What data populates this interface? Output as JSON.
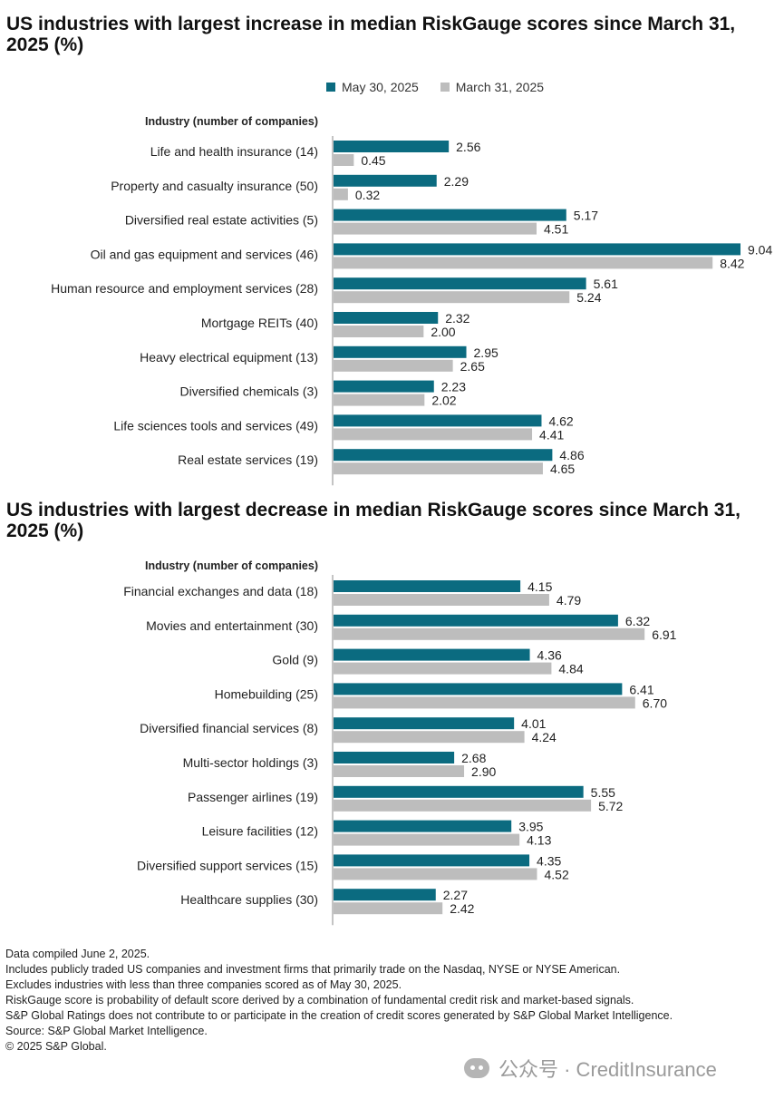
{
  "colors": {
    "may": "#0b6b80",
    "march": "#bdbdbd",
    "axis": "#8a8a8a"
  },
  "legend": {
    "may_label": "May 30, 2025",
    "march_label": "March 31, 2025"
  },
  "chart_data": [
    {
      "type": "bar",
      "orientation": "horizontal",
      "title": "US industries with largest increase in median RiskGauge scores since March 31, 2025 (%)",
      "category_header": "Industry (number of companies)",
      "categories": [
        "Life and health insurance (14)",
        "Property and casualty insurance (50)",
        "Diversified real estate activities (5)",
        "Oil and gas equipment and services (46)",
        "Human resource and employment services (28)",
        "Mortgage REITs (40)",
        "Heavy electrical equipment (13)",
        "Diversified chemicals (3)",
        "Life sciences tools and services (49)",
        "Real estate services (19)"
      ],
      "series": [
        {
          "name": "May 30, 2025",
          "values": [
            2.56,
            2.29,
            5.17,
            9.04,
            5.61,
            2.32,
            2.95,
            2.23,
            4.62,
            4.86
          ],
          "labels": [
            "2.56",
            "2.29",
            "5.17",
            "9.04",
            "5.61",
            "2.32",
            "2.95",
            "2.23",
            "4.62",
            "4.86"
          ]
        },
        {
          "name": "March 31, 2025",
          "values": [
            0.45,
            0.32,
            4.51,
            8.42,
            5.24,
            2.0,
            2.65,
            2.02,
            4.41,
            4.65
          ],
          "labels": [
            "0.45",
            "0.32",
            "4.51",
            "8.42",
            "5.24",
            "2.00",
            "2.65",
            "2.02",
            "4.41",
            "4.65"
          ]
        }
      ],
      "xlim": [
        0,
        9.04
      ]
    },
    {
      "type": "bar",
      "orientation": "horizontal",
      "title": "US industries with largest decrease in median RiskGauge scores since March 31, 2025 (%)",
      "category_header": "Industry (number of companies)",
      "categories": [
        "Financial exchanges and data (18)",
        "Movies and entertainment (30)",
        "Gold (9)",
        "Homebuilding (25)",
        "Diversified financial services (8)",
        "Multi-sector holdings (3)",
        "Passenger airlines (19)",
        "Leisure facilities (12)",
        "Diversified support services (15)",
        "Healthcare supplies (30)"
      ],
      "series": [
        {
          "name": "May 30, 2025",
          "values": [
            4.15,
            6.32,
            4.36,
            6.41,
            4.01,
            2.68,
            5.55,
            3.95,
            4.35,
            2.27
          ],
          "labels": [
            "4.15",
            "6.32",
            "4.36",
            "6.41",
            "4.01",
            "2.68",
            "5.55",
            "3.95",
            "4.35",
            "2.27"
          ]
        },
        {
          "name": "March 31, 2025",
          "values": [
            4.79,
            6.91,
            4.84,
            6.7,
            4.24,
            2.9,
            5.72,
            4.13,
            4.52,
            2.42
          ],
          "labels": [
            "4.79",
            "6.91",
            "4.84",
            "6.70",
            "4.24",
            "2.90",
            "5.72",
            "4.13",
            "4.52",
            "2.42"
          ]
        }
      ],
      "xlim": [
        0,
        9.04
      ]
    }
  ],
  "footnotes": [
    "Data compiled June 2, 2025.",
    "Includes publicly traded US companies and investment firms that primarily trade on the Nasdaq, NYSE or NYSE American.",
    "Excludes industries with less than three companies scored as of May 30, 2025.",
    "RiskGauge score is probability of default score derived by a combination of fundamental credit risk and market-based signals.",
    "S&P Global Ratings does not contribute to or participate in the creation of credit scores generated by S&P Global Market Intelligence.",
    "Source: S&P Global Market Intelligence.",
    "© 2025 S&P Global."
  ],
  "watermark": {
    "text": "公众号 · CreditInsurance"
  }
}
